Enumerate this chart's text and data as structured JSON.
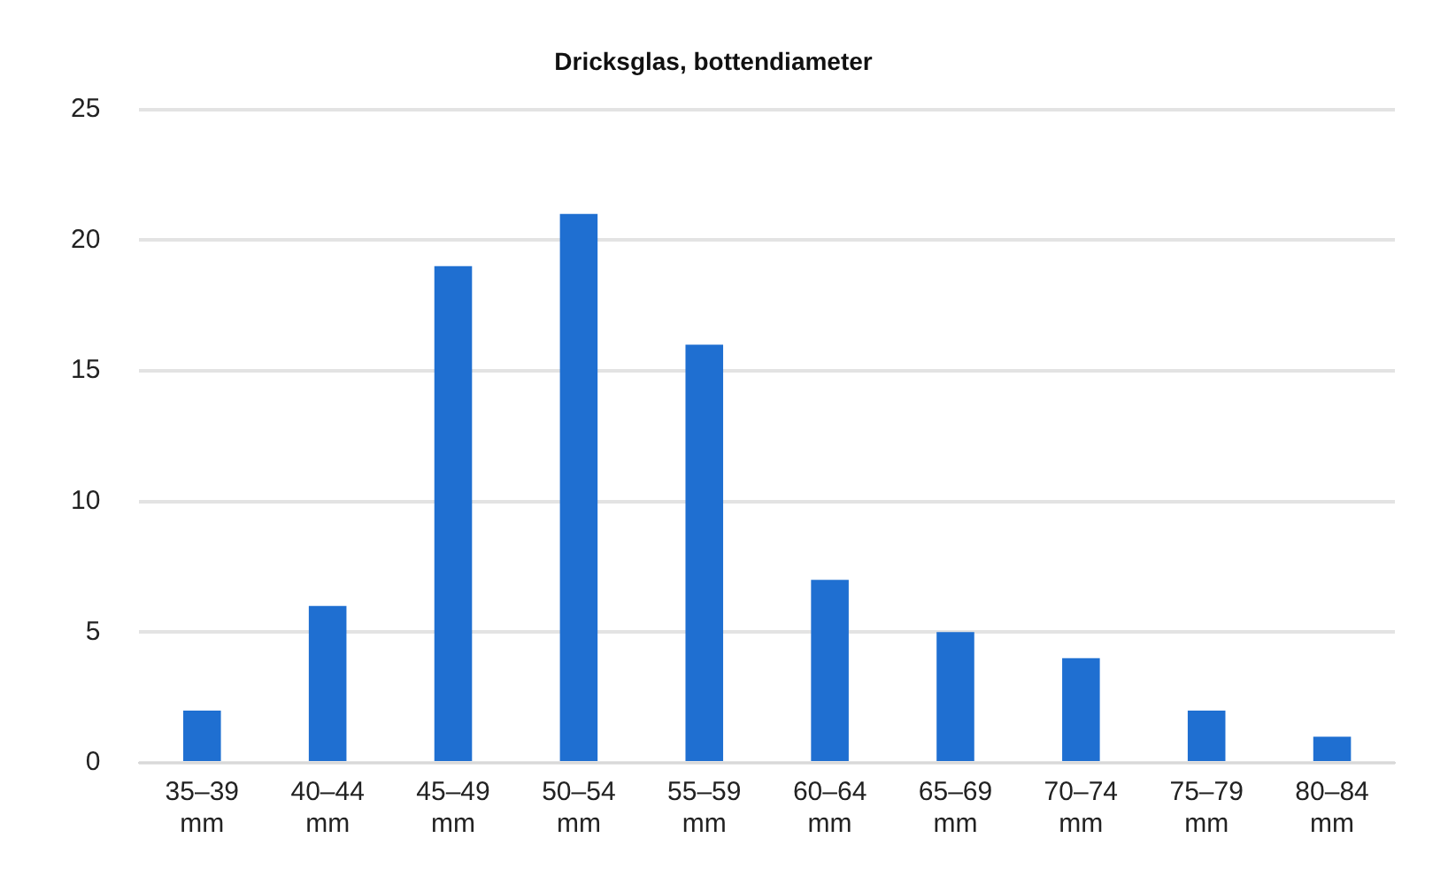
{
  "chart_data": {
    "type": "bar",
    "title": "Dricksglas, bottendiameter",
    "categories": [
      "35–39 mm",
      "40–44 mm",
      "45–49 mm",
      "50–54 mm",
      "55–59 mm",
      "60–64 mm",
      "65–69 mm",
      "70–74 mm",
      "75–79 mm",
      "80–84 mm"
    ],
    "values": [
      2,
      6,
      19,
      21,
      16,
      7,
      5,
      4,
      2,
      1
    ],
    "color": "#1f6fd1",
    "ylim": [
      0,
      25
    ],
    "yticks": [
      0,
      5,
      10,
      15,
      20,
      25
    ],
    "grid": "y"
  }
}
